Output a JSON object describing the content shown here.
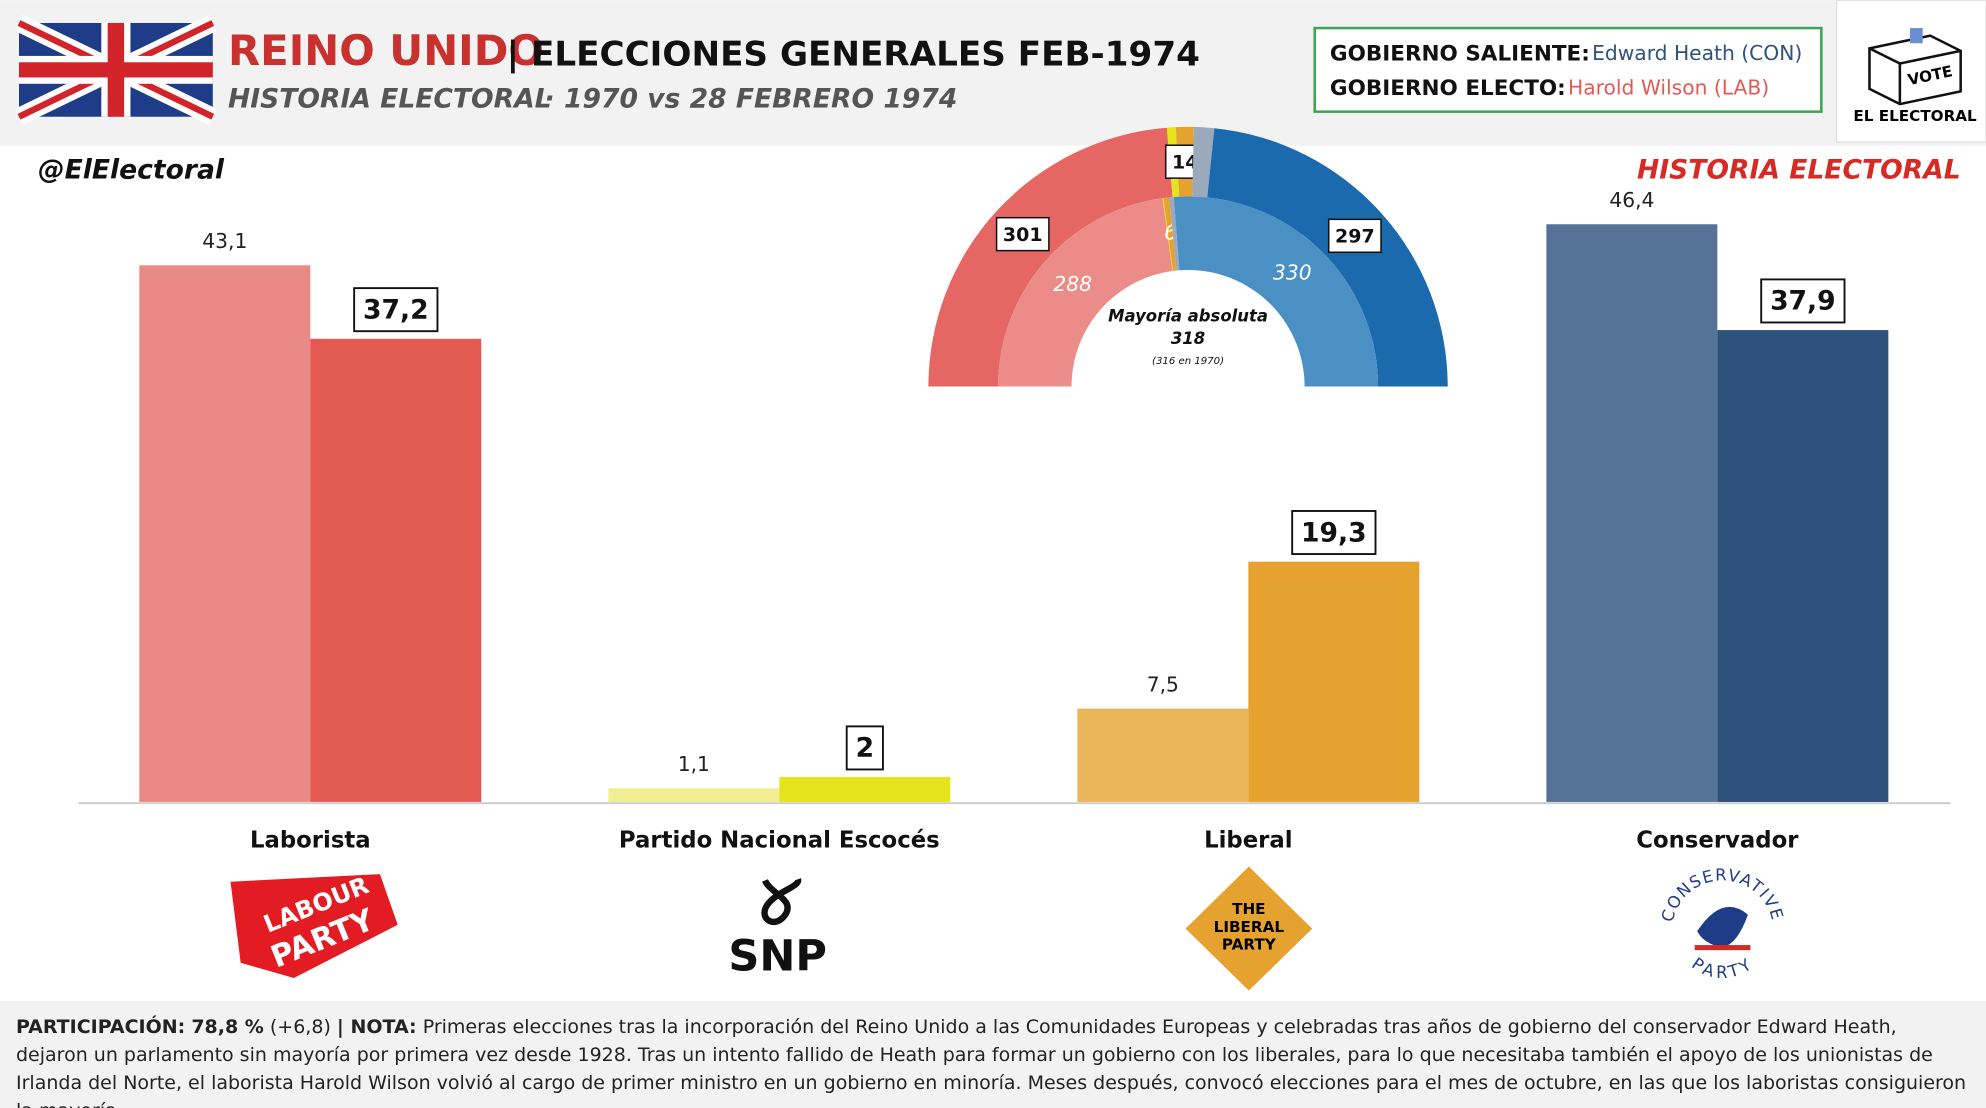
{
  "header": {
    "country": "REINO UNIDO",
    "title": "| ELECCIONES GENERALES FEB-1974",
    "subtitle": "HISTORIA ELECTORAL",
    "date": "· 1970 vs 28 FEBRERO 1974"
  },
  "government": {
    "outgoing_label": "GOBIERNO SALIENTE:",
    "outgoing": "Edward Heath (CON)",
    "elected_label": "GOBIERNO ELECTO:",
    "elected": "Harold Wilson (LAB)"
  },
  "logo": {
    "vote": "VOTE",
    "name": "EL ELECTORAL"
  },
  "brand": {
    "handle": "@ElElectoral",
    "tag": "HISTORIA ELECTORAL"
  },
  "chart_data": [
    {
      "type": "bar",
      "categories": [
        "Laborista",
        "Partido Nacional Escocés",
        "Liberal",
        "Conservador"
      ],
      "series": [
        {
          "values": [
            43.1,
            1.1,
            7.5,
            46.4
          ],
          "value_labels": [
            "43,1",
            "1,1",
            "7,5",
            "46,4"
          ],
          "colors": [
            "#ea8a86",
            "#f0ee90",
            "#ebb65a",
            "#557398"
          ]
        },
        {
          "values": [
            37.2,
            2,
            19.3,
            37.9
          ],
          "value_labels": [
            "37,2",
            "2",
            "19,3",
            "37,9"
          ],
          "colors": [
            "#e35a53",
            "#e5e41a",
            "#e5a22e",
            "#2e527c"
          ]
        }
      ],
      "ylim": [
        0,
        50
      ]
    },
    {
      "type": "parliament",
      "series": [
        {
          "values": [
            301,
            7,
            14,
            16,
            297
          ],
          "value_labels": [
            "301",
            null,
            "14",
            null,
            "297"
          ],
          "colors": [
            "#e56663",
            "#e5e41a",
            "#e5a22e",
            "#9aa9bb",
            "#1a6aad"
          ]
        },
        {
          "values": [
            288,
            1,
            6,
            5,
            330
          ],
          "value_labels": [
            "288",
            null,
            "6",
            null,
            "330"
          ],
          "colors": [
            "#ec8c88",
            "#e5e41a",
            "#e5a22e",
            "#9aa9bb",
            "#4a90c4"
          ]
        }
      ],
      "majority_label": "Mayoría absoluta",
      "majority": 318,
      "majority_note": "(316 en 1970)"
    }
  ],
  "logos": {
    "labour": [
      "LABOUR",
      "PARTY"
    ],
    "snp": "SNP",
    "liberal": [
      "THE",
      "LIBERAL",
      "PARTY"
    ],
    "conservative": [
      "CONSERVATIVE",
      "PARTY"
    ]
  },
  "footer": {
    "participation_label": "PARTICIPACIÓN:",
    "participation": "78,8 %",
    "participation_change": "(+6,8)",
    "note_label": "| NOTA:",
    "note": "Primeras elecciones tras la incorporación del Reino Unido a las Comunidades Europeas y celebradas tras años de gobierno del conservador Edward Heath, dejaron un parlamento sin mayoría por primera vez desde 1928. Tras un intento fallido de Heath para formar un gobierno con los liberales, para lo que necesitaba también el apoyo de los unionistas de Irlanda del Norte, el laborista Harold Wilson volvió al cargo de primer ministro en un gobierno en minoría. Meses después, convocó elecciones para el mes de octubre, en las que los laboristas consiguieron la mayoría."
  }
}
